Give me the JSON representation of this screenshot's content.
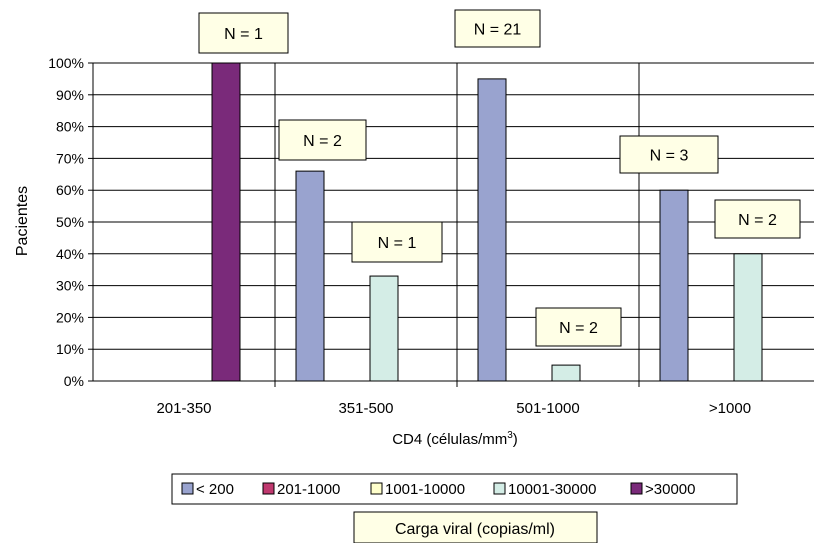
{
  "chart_data": {
    "type": "bar",
    "title": "",
    "xlabel": "CD4 (células/mm",
    "xlabel_sup": "3",
    "xlabel_suffix": ")",
    "ylabel": "Pacientes",
    "ylim": [
      0,
      100
    ],
    "y_ticks": [
      "0%",
      "10%",
      "20%",
      "30%",
      "40%",
      "50%",
      "60%",
      "70%",
      "80%",
      "90%",
      "100%"
    ],
    "grid": true,
    "categories": [
      "201-350",
      "351-500",
      "501-1000",
      ">1000"
    ],
    "series": [
      {
        "name": "< 200",
        "color": "#99a3cf",
        "values": [
          0,
          66,
          95,
          60
        ]
      },
      {
        "name": "201-1000",
        "color": "#c0396f",
        "values": [
          0,
          0,
          0,
          0
        ]
      },
      {
        "name": "1001-10000",
        "color": "#ffffcc",
        "values": [
          0,
          0,
          0,
          0
        ]
      },
      {
        "name": "10001-30000",
        "color": "#d4ede6",
        "values": [
          0,
          33,
          5,
          40
        ]
      },
      {
        "name": ">30000",
        "color": "#7a2a7a",
        "values": [
          100,
          0,
          0,
          0
        ]
      }
    ],
    "annotations": [
      "N = 1",
      "N = 2",
      "N = 1",
      "N = 21",
      "N = 2",
      "N = 3",
      "N = 2"
    ],
    "legend_position": "bottom",
    "legend_title": "Carga viral (copias/ml)"
  }
}
